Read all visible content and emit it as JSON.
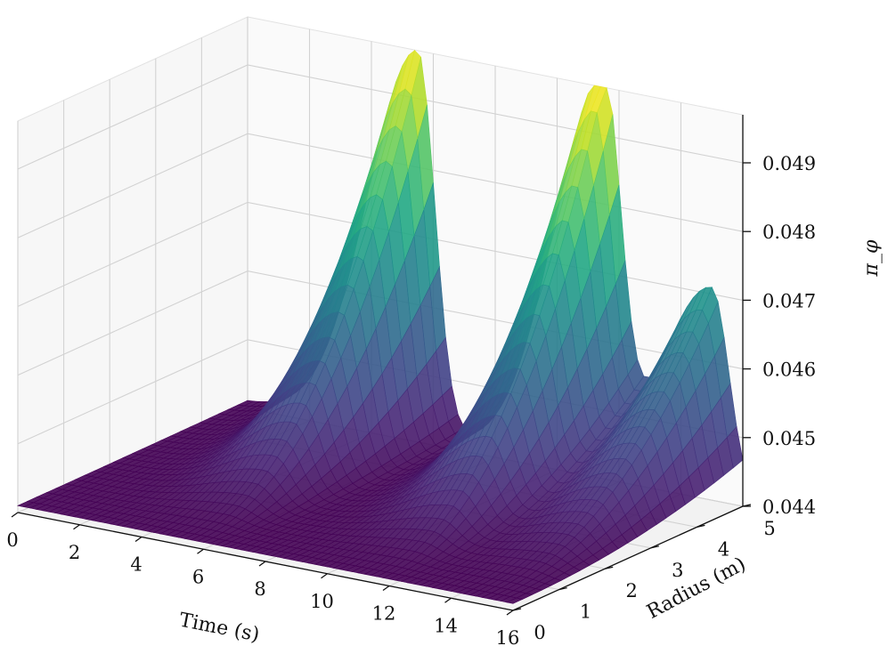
{
  "chart_data": {
    "type": "surface3d",
    "colormap": "viridis",
    "x": {
      "label": "Time (s)",
      "range": [
        0,
        16
      ],
      "ticks": [
        0,
        2,
        4,
        6,
        8,
        10,
        12,
        14,
        16
      ]
    },
    "y": {
      "label": "Radius (m)",
      "range": [
        0,
        5
      ],
      "ticks": [
        0,
        1,
        2,
        3,
        4,
        5
      ]
    },
    "z": {
      "label": "π_φ",
      "range": [
        0.044,
        0.0497
      ],
      "ticks": [
        0.044,
        0.045,
        0.046,
        0.047,
        0.048,
        0.049
      ],
      "tick_labels": [
        "0.044",
        "0.045",
        "0.046",
        "0.047",
        "0.048",
        "0.049"
      ]
    },
    "peaks": [
      {
        "time": 5.5,
        "radius": 5.0,
        "value": 0.0497
      },
      {
        "time": 11.5,
        "radius": 5.0,
        "value": 0.0497
      },
      {
        "time": 15.0,
        "radius": 5.0,
        "value": 0.0471
      }
    ],
    "baseline_value": 0.0441,
    "grid": true
  }
}
